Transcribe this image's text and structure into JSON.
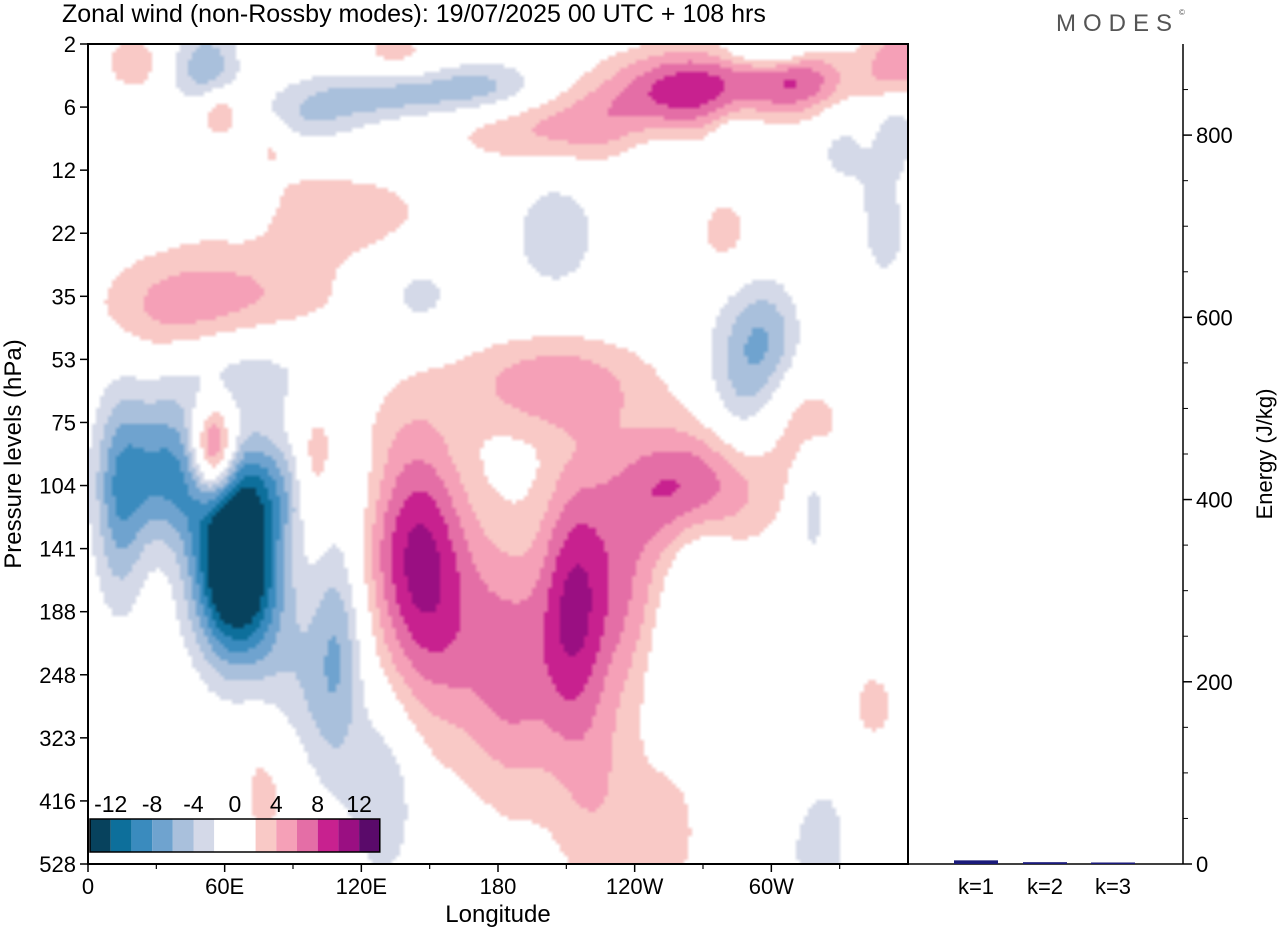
{
  "header": {
    "title": "Zonal wind (non-Rossby modes):  19/07/2025  00 UTC  + 108 hrs",
    "logo": "MODES",
    "logo_mark": "©"
  },
  "colors": {
    "scale": [
      "#07425d",
      "#0d6f9b",
      "#3a8bbe",
      "#6fa3cf",
      "#a9c0dc",
      "#d4d9e8",
      "#ffffff",
      "#ffffff",
      "#f9c9c6",
      "#f5a0b7",
      "#e46ea6",
      "#c8218f",
      "#9a0f82",
      "#5a0a6a"
    ]
  },
  "chart_data": [
    {
      "type": "heatmap",
      "title": "Zonal wind (non-Rossby modes):  19/07/2025  00 UTC  + 108 hrs",
      "xlabel": "Longitude",
      "ylabel": "Pressure levels (hPa)",
      "x_ticks": [
        "0",
        "60E",
        "120E",
        "180",
        "120W",
        "60W"
      ],
      "x_tick_values": [
        0,
        60,
        120,
        180,
        240,
        300
      ],
      "xlim": [
        0,
        360
      ],
      "y_ticks": [
        "2",
        "6",
        "12",
        "22",
        "35",
        "53",
        "75",
        "104",
        "141",
        "188",
        "248",
        "323",
        "416",
        "528"
      ],
      "colorbar": {
        "labels": [
          "-12",
          "-8",
          "-4",
          "0",
          "4",
          "8",
          "12"
        ],
        "levels": [
          -14,
          -12,
          -10,
          -8,
          -6,
          -4,
          -2,
          0,
          2,
          4,
          6,
          8,
          10,
          12,
          14
        ]
      },
      "blobs": [
        {
          "lon": 65,
          "lev": 8.3,
          "w": 13,
          "h": 1.0,
          "amp": -18,
          "rot": -0.6
        },
        {
          "lon": 55,
          "lev": 6.5,
          "w": 7,
          "h": 0.55,
          "amp": 13,
          "rot": -0.7
        },
        {
          "lon": 35,
          "lev": 6.7,
          "w": 16,
          "h": 0.8,
          "amp": -7,
          "rot": -0.25
        },
        {
          "lon": 14,
          "lev": 7.3,
          "w": 8,
          "h": 1.2,
          "amp": -6,
          "rot": 0
        },
        {
          "lon": 62,
          "lev": 5.2,
          "w": 30,
          "h": 0.55,
          "amp": -3.5,
          "rot": -0.6
        },
        {
          "lon": 79,
          "lev": 7.0,
          "w": 30,
          "h": 0.6,
          "amp": -5,
          "rot": -0.8
        },
        {
          "lon": 110,
          "lev": 9.4,
          "w": 8,
          "h": 1.3,
          "amp": -5,
          "rot": 0
        },
        {
          "lon": 90,
          "lev": 10.5,
          "w": 16,
          "h": 1.2,
          "amp": -4.5,
          "rot": -0.3
        },
        {
          "lon": 130,
          "lev": 11.9,
          "w": 10,
          "h": 1.0,
          "amp": -4,
          "rot": 0
        },
        {
          "lon": 80,
          "lev": 11.5,
          "w": 12,
          "h": 1.0,
          "amp": 4.5,
          "rot": 0.3
        },
        {
          "lon": 100,
          "lev": 6.8,
          "w": 7,
          "h": 0.7,
          "amp": 6,
          "rot": 0
        },
        {
          "lon": 140,
          "lev": 7.3,
          "w": 18,
          "h": 1.3,
          "amp": 4.5,
          "rot": 0
        },
        {
          "lon": 145,
          "lev": 8.4,
          "w": 14,
          "h": 1.3,
          "amp": 5.5,
          "rot": 0
        },
        {
          "lon": 160,
          "lev": 9.4,
          "w": 18,
          "h": 1.4,
          "amp": 4.5,
          "rot": 0
        },
        {
          "lon": 188,
          "lev": 10.0,
          "w": 14,
          "h": 1.5,
          "amp": 5.5,
          "rot": 0
        },
        {
          "lon": 212,
          "lev": 9.0,
          "w": 10,
          "h": 1.5,
          "amp": 7,
          "rot": 0
        },
        {
          "lon": 232,
          "lev": 8.6,
          "w": 16,
          "h": 1.2,
          "amp": 6,
          "rot": -0.6
        },
        {
          "lon": 265,
          "lev": 7.0,
          "w": 26,
          "h": 0.7,
          "amp": 8,
          "rot": -0.6
        },
        {
          "lon": 205,
          "lev": 5.4,
          "w": 30,
          "h": 0.55,
          "amp": 5.5,
          "rot": -0.6
        },
        {
          "lon": 225,
          "lev": 11.9,
          "w": 14,
          "h": 1.4,
          "amp": 3.5,
          "rot": 0
        },
        {
          "lon": 255,
          "lev": 12.5,
          "w": 10,
          "h": 0.8,
          "amp": 3,
          "rot": 0
        },
        {
          "lon": 315,
          "lev": 6.0,
          "w": 14,
          "h": 0.6,
          "amp": 3,
          "rot": -0.5
        },
        {
          "lon": 288,
          "lev": 5.3,
          "w": 12,
          "h": 1.0,
          "amp": -5,
          "rot": -0.6
        },
        {
          "lon": 300,
          "lev": 4.6,
          "w": 10,
          "h": 0.6,
          "amp": -3.5,
          "rot": -0.5
        },
        {
          "lon": 270,
          "lev": 8.2,
          "w": 10,
          "h": 0.7,
          "amp": -2.5,
          "rot": 0
        },
        {
          "lon": 260,
          "lev": 9.7,
          "w": 10,
          "h": 0.8,
          "amp": -2.5,
          "rot": 0
        },
        {
          "lon": 318,
          "lev": 7.3,
          "w": 6,
          "h": 0.7,
          "amp": -3.5,
          "rot": 0
        },
        {
          "lon": 305,
          "lev": 10.2,
          "w": 8,
          "h": 0.9,
          "amp": -2.5,
          "rot": 0
        },
        {
          "lon": 320,
          "lev": 12.6,
          "w": 12,
          "h": 0.8,
          "amp": -3,
          "rot": -0.5
        },
        {
          "lon": 310,
          "lev": 11.1,
          "w": 6,
          "h": 0.8,
          "amp": 2.5,
          "rot": 0
        },
        {
          "lon": 345,
          "lev": 10.5,
          "w": 10,
          "h": 0.6,
          "amp": 2.5,
          "rot": 0
        },
        {
          "lon": 205,
          "lev": 3.0,
          "w": 14,
          "h": 0.7,
          "amp": -3.5,
          "rot": 0
        },
        {
          "lon": 145,
          "lev": 4.0,
          "w": 14,
          "h": 0.5,
          "amp": -3,
          "rot": 0
        },
        {
          "lon": 65,
          "lev": 4.0,
          "w": 35,
          "h": 0.55,
          "amp": 4,
          "rot": -0.4
        },
        {
          "lon": 35,
          "lev": 4.5,
          "w": 22,
          "h": 0.7,
          "amp": 3,
          "rot": -0.3
        },
        {
          "lon": 105,
          "lev": 2.7,
          "w": 35,
          "h": 0.5,
          "amp": 3.5,
          "rot": -0.3
        },
        {
          "lon": 215,
          "lev": 1.3,
          "w": 40,
          "h": 0.45,
          "amp": 5,
          "rot": -0.4
        },
        {
          "lon": 265,
          "lev": 0.7,
          "w": 25,
          "h": 0.45,
          "amp": 9,
          "rot": -0.2
        },
        {
          "lon": 315,
          "lev": 0.6,
          "w": 16,
          "h": 0.4,
          "amp": 7,
          "rot": 0
        },
        {
          "lon": 355,
          "lev": 0.4,
          "w": 10,
          "h": 0.5,
          "amp": 6,
          "rot": 0
        },
        {
          "lon": 130,
          "lev": 0.8,
          "w": 28,
          "h": 0.3,
          "amp": -5,
          "rot": 0
        },
        {
          "lon": 175,
          "lev": 0.7,
          "w": 20,
          "h": 0.3,
          "amp": -4.5,
          "rot": 0
        },
        {
          "lon": 90,
          "lev": 1.2,
          "w": 22,
          "h": 0.3,
          "amp": -3.5,
          "rot": 0
        },
        {
          "lon": 52,
          "lev": 0.4,
          "w": 10,
          "h": 0.5,
          "amp": -5.5,
          "rot": 0
        },
        {
          "lon": 300,
          "lev": 0.1,
          "w": 12,
          "h": 0.2,
          "amp": -5,
          "rot": 0
        },
        {
          "lon": 285,
          "lev": 1.4,
          "w": 10,
          "h": 0.4,
          "amp": -3.5,
          "rot": 0
        },
        {
          "lon": 250,
          "lev": 1.6,
          "w": 12,
          "h": 0.5,
          "amp": -2.5,
          "rot": 0
        },
        {
          "lon": 330,
          "lev": 1.5,
          "w": 12,
          "h": 0.7,
          "amp": -2.5,
          "rot": 0
        },
        {
          "lon": 355,
          "lev": 1.2,
          "w": 6,
          "h": 0.5,
          "amp": -4,
          "rot": 0
        },
        {
          "lon": 58,
          "lev": 1.1,
          "w": 8,
          "h": 0.3,
          "amp": 6,
          "rot": 0
        },
        {
          "lon": 20,
          "lev": 0.3,
          "w": 8,
          "h": 0.3,
          "amp": 4,
          "rot": 0
        },
        {
          "lon": 80,
          "lev": 1.5,
          "w": 8,
          "h": 0.4,
          "amp": 3,
          "rot": 0
        },
        {
          "lon": 70,
          "lev": 2.5,
          "w": 10,
          "h": 0.4,
          "amp": -2.5,
          "rot": 0
        },
        {
          "lon": 280,
          "lev": 3.0,
          "w": 10,
          "h": 0.5,
          "amp": 3,
          "rot": 0
        },
        {
          "lon": 350,
          "lev": 3.0,
          "w": 10,
          "h": 0.8,
          "amp": -2.5,
          "rot": 0
        },
        {
          "lon": 135,
          "lev": 0.2,
          "w": 15,
          "h": 0.3,
          "amp": 3,
          "rot": 0
        }
      ]
    },
    {
      "type": "bar",
      "categories": [
        "k=1",
        "k=2",
        "k=3"
      ],
      "values": [
        8,
        4,
        2
      ],
      "ylabel": "Energy (J/kg)",
      "ylim": [
        0,
        900
      ],
      "y_ticks": [
        "0",
        "200",
        "400",
        "600",
        "800"
      ],
      "y_tick_values": [
        0,
        200,
        400,
        600,
        800
      ]
    }
  ]
}
